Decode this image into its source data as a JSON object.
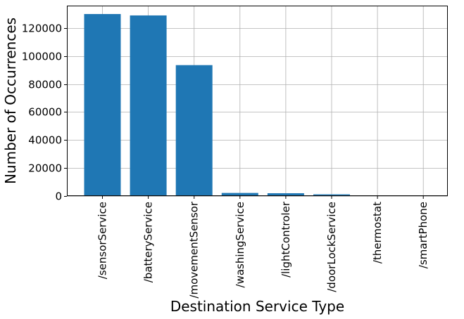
{
  "chart_data": {
    "type": "bar",
    "title": "",
    "xlabel": "Destination Service Type",
    "ylabel": "Number of Occurrences",
    "categories": [
      "/sensorService",
      "/batteryService",
      "/movementSensor",
      "/washingService",
      "/lightControler",
      "/doorLockService",
      "/thermostat",
      "/smartPhone"
    ],
    "values": [
      130000,
      129000,
      93500,
      2200,
      2000,
      1200,
      500,
      100
    ],
    "ylim": [
      0,
      136000
    ],
    "yticks": [
      0,
      20000,
      40000,
      60000,
      80000,
      100000,
      120000
    ],
    "grid": true,
    "bar_color": "#1f77b4"
  }
}
